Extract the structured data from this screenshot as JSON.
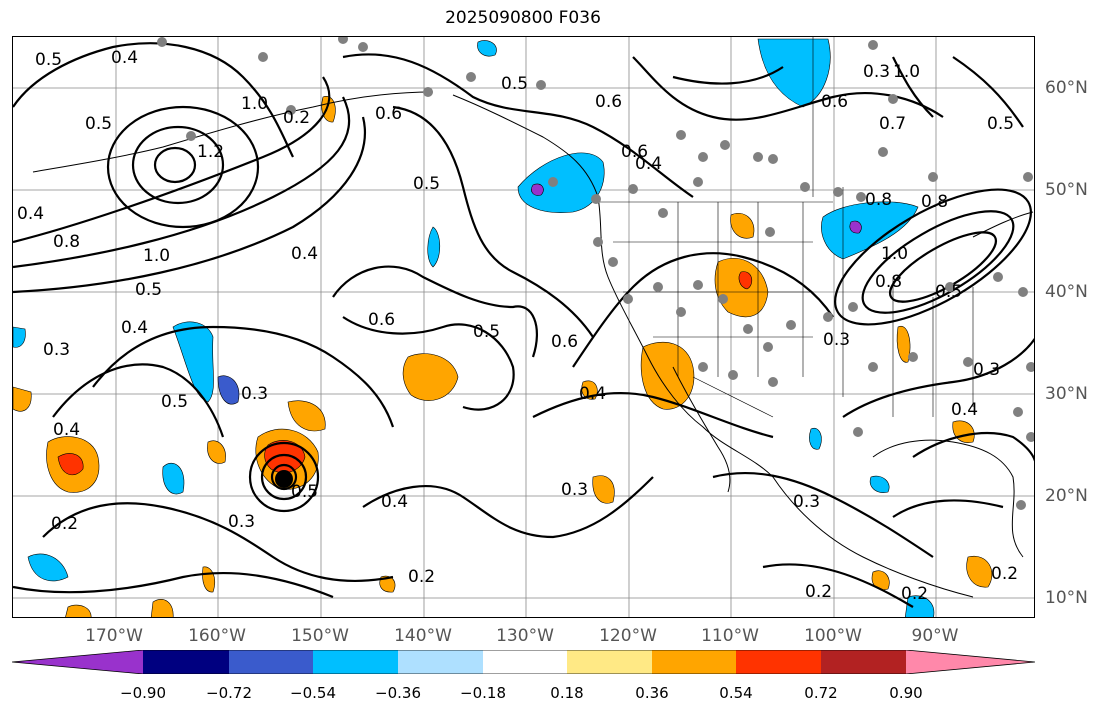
{
  "title": "2025090800 F036",
  "longitudes": [
    "170°W",
    "160°W",
    "150°W",
    "140°W",
    "130°W",
    "120°W",
    "110°W",
    "100°W",
    "90°W"
  ],
  "latitudes": [
    "60°N",
    "50°N",
    "40°N",
    "30°N",
    "20°N",
    "10°N"
  ],
  "colorbar": {
    "colors": [
      "#9932cc",
      "#000080",
      "#3a5bcc",
      "#00bfff",
      "#aee0ff",
      "#ffffff",
      "#ffe985",
      "#ffa500",
      "#ff3300",
      "#b22222",
      "#ff88aa"
    ],
    "ticks": [
      "−0.90",
      "−0.72",
      "−0.54",
      "−0.36",
      "−0.18",
      "0.18",
      "0.36",
      "0.54",
      "0.72",
      "0.90"
    ]
  },
  "contour_labels": [
    "0.5",
    "0.4",
    "0.5",
    "1.2",
    "1.0",
    "0.6",
    "0.5",
    "0.4",
    "0.8",
    "1.0",
    "0.5",
    "0.4",
    "0.3",
    "0.5",
    "0.4",
    "0.6",
    "0.5",
    "0.6",
    "0.4",
    "0.3",
    "0.2",
    "0.3",
    "0.2",
    "0.3",
    "0.4",
    "0.5",
    "0.6",
    "0.3",
    "0.7",
    "0.5",
    "0.6",
    "0.8",
    "0.4",
    "0.8",
    "0.6",
    "1.0",
    "0.8",
    "0.5",
    "0.3",
    "0.4",
    "0.3",
    "0.2",
    "0.2",
    "0.2",
    "0.4",
    "0.3",
    "0.2",
    "1.0",
    "0.5"
  ],
  "colors": {
    "fill_orange": "#ffa500",
    "fill_red": "#ff3300",
    "fill_blue": "#00bfff",
    "fill_lightblue": "#aee0ff",
    "fill_purple": "#9932cc",
    "station": "#808080"
  }
}
